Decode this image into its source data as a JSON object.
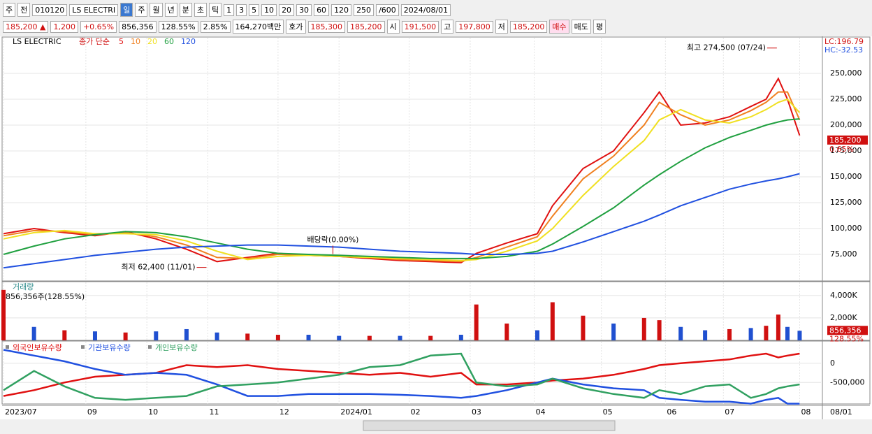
{
  "toolbar": [
    "주",
    "전",
    "010120",
    "LS ELECTRI",
    "일",
    "주",
    "월",
    "년",
    "분",
    "초",
    "틱",
    "1",
    "3",
    "5",
    "10",
    "20",
    "30",
    "60",
    "120",
    "250",
    "/600",
    "2024/08/01"
  ],
  "info": [
    "185,200 ▲",
    "1,200",
    "+0.65%",
    "856,356",
    "128.55%",
    "2.85%",
    "164,270백만",
    "호가",
    "185,300",
    "185,200",
    "시",
    "191,500",
    "고",
    "197,800",
    "저",
    "185,200",
    "매수",
    "매도",
    "평"
  ],
  "chart_data": [
    {
      "type": "line",
      "title": "LS ELECTRIC",
      "legend_label": "종가 단순",
      "lc": "LC:196.79",
      "hc": "HC:-32.53",
      "x": [
        0,
        10,
        20,
        30,
        40,
        50,
        60,
        70,
        80,
        90,
        100,
        110,
        120,
        130,
        140,
        150,
        155,
        165,
        175,
        180,
        190,
        200,
        210,
        215,
        222,
        230,
        238,
        245,
        250,
        254,
        257,
        261
      ],
      "xlim": [
        0,
        268
      ],
      "ylim": [
        49300,
        285800
      ],
      "yticks": [
        {
          "value": 75000,
          "label": "75,000"
        },
        {
          "value": 100000,
          "label": "100,000"
        },
        {
          "value": 125000,
          "label": "125,000"
        },
        {
          "value": 150000,
          "label": "150,000"
        },
        {
          "value": 175000,
          "label": "175,000"
        },
        {
          "value": 200000,
          "label": "200,000"
        },
        {
          "value": 225000,
          "label": "225,000"
        },
        {
          "value": 250000,
          "label": "250,000"
        }
      ],
      "series": [
        {
          "name": "5",
          "color": "#e01010",
          "values": [
            95000,
            100000,
            96000,
            93000,
            97000,
            90000,
            80000,
            68000,
            72000,
            76000,
            74000,
            73000,
            71000,
            69000,
            68000,
            67000,
            76000,
            86000,
            95000,
            122000,
            158000,
            175000,
            212000,
            232000,
            200000,
            202000,
            208000,
            218000,
            225000,
            245000,
            225000,
            190000
          ]
        },
        {
          "name": "10",
          "color": "#f08020",
          "values": [
            93000,
            98000,
            97000,
            94000,
            96000,
            92000,
            84000,
            72000,
            71000,
            75000,
            74000,
            73000,
            72000,
            70000,
            69000,
            68000,
            72000,
            82000,
            92000,
            112000,
            148000,
            170000,
            200000,
            222000,
            210000,
            200000,
            205000,
            214000,
            222000,
            232000,
            232000,
            205000
          ]
        },
        {
          "name": "20",
          "color": "#f0e020",
          "values": [
            90000,
            96000,
            98000,
            95000,
            95000,
            94000,
            88000,
            78000,
            70000,
            73000,
            74000,
            73000,
            72000,
            71000,
            70000,
            69000,
            70000,
            78000,
            88000,
            100000,
            132000,
            160000,
            185000,
            205000,
            215000,
            205000,
            202000,
            208000,
            215000,
            222000,
            225000,
            212000
          ]
        },
        {
          "name": "60",
          "color": "#20a040",
          "values": [
            75000,
            83000,
            90000,
            94000,
            97000,
            96000,
            92000,
            86000,
            80000,
            76000,
            75000,
            74000,
            73000,
            72000,
            71000,
            71000,
            71000,
            73000,
            78000,
            85000,
            102000,
            120000,
            142000,
            152000,
            165000,
            178000,
            188000,
            195000,
            200000,
            203000,
            205000,
            206000
          ]
        },
        {
          "name": "120",
          "color": "#2050e0",
          "values": [
            62000,
            66000,
            70000,
            74000,
            77000,
            80000,
            82000,
            83000,
            84000,
            84000,
            83000,
            82000,
            80000,
            78000,
            77000,
            76000,
            75000,
            75000,
            76000,
            78000,
            87000,
            97000,
            107000,
            113000,
            122000,
            130000,
            138000,
            143000,
            146000,
            148000,
            150000,
            153000
          ]
        }
      ],
      "annotations": [
        {
          "text": "최고 274,500 (07/24)",
          "x": 254,
          "y": 274500,
          "side": "left"
        },
        {
          "text": "최저 62,400 (11/01)",
          "x": 67,
          "y": 62400,
          "side": "left"
        },
        {
          "text": "배당락(0.00%)",
          "x": 108,
          "y": 74000,
          "side": "top"
        }
      ],
      "last": {
        "value": 185200,
        "label": "185,200",
        "change": "0.65%"
      }
    },
    {
      "type": "bar",
      "title": "거래량",
      "summary": "856,356주(128.55%)",
      "x": [
        0,
        10,
        20,
        30,
        40,
        50,
        60,
        70,
        80,
        90,
        100,
        110,
        120,
        130,
        140,
        150,
        155,
        165,
        175,
        180,
        190,
        200,
        210,
        215,
        222,
        230,
        238,
        245,
        250,
        254,
        257,
        261
      ],
      "xlim": [
        0,
        268
      ],
      "ylim": [
        0,
        5300000
      ],
      "yticks": [
        {
          "value": 2000000,
          "label": "2,000K"
        },
        {
          "value": 4000000,
          "label": "4,000K"
        }
      ],
      "values": [
        4500000,
        1200000,
        900000,
        800000,
        700000,
        800000,
        1000000,
        700000,
        600000,
        500000,
        500000,
        400000,
        400000,
        400000,
        400000,
        500000,
        3200000,
        1500000,
        900000,
        3400000,
        2200000,
        1500000,
        2000000,
        1800000,
        1200000,
        900000,
        1000000,
        1100000,
        1300000,
        2300000,
        1200000,
        856356
      ],
      "colors": [
        "#d01010",
        "#2050d0",
        "#d01010",
        "#2050d0",
        "#d01010",
        "#2050d0",
        "#2050d0",
        "#2050d0",
        "#d01010",
        "#d01010",
        "#2050d0",
        "#2050d0",
        "#d01010",
        "#2050d0",
        "#d01010",
        "#2050d0",
        "#d01010",
        "#d01010",
        "#2050d0",
        "#d01010",
        "#d01010",
        "#2050d0",
        "#d01010",
        "#d01010",
        "#2050d0",
        "#2050d0",
        "#d01010",
        "#2050d0",
        "#d01010",
        "#d01010",
        "#2050d0",
        "#2050d0"
      ],
      "last": {
        "value": 856356,
        "label": "856,356",
        "pct": "128.55%"
      }
    },
    {
      "type": "line",
      "x": [
        0,
        10,
        20,
        30,
        40,
        50,
        60,
        70,
        80,
        90,
        100,
        110,
        120,
        130,
        140,
        150,
        155,
        165,
        175,
        180,
        190,
        200,
        210,
        215,
        222,
        230,
        238,
        245,
        250,
        254,
        257,
        261
      ],
      "xlim": [
        0,
        268
      ],
      "ylim": [
        -1058000,
        596000
      ],
      "yticks": [
        0,
        {
          "value": -500000,
          "label": "-500,000"
        }
      ],
      "xticks": [
        {
          "value": 0,
          "label": "2023/07"
        },
        {
          "value": 27,
          "label": "09"
        },
        {
          "value": 47,
          "label": "10"
        },
        {
          "value": 67,
          "label": "11"
        },
        {
          "value": 90,
          "label": "12"
        },
        {
          "value": 110,
          "label": "2024/01"
        },
        {
          "value": 133,
          "label": "02"
        },
        {
          "value": 153,
          "label": "03"
        },
        {
          "value": 174,
          "label": "04"
        },
        {
          "value": 196,
          "label": "05"
        },
        {
          "value": 217,
          "label": "06"
        },
        {
          "value": 236,
          "label": "07"
        },
        {
          "value": 261,
          "label": "08"
        }
      ],
      "x_end_label": "08/01",
      "series": [
        {
          "name": "외국인보유수량",
          "color": "#e01010",
          "values": [
            -850000,
            -700000,
            -500000,
            -350000,
            -300000,
            -250000,
            -50000,
            -100000,
            -50000,
            -150000,
            -200000,
            -250000,
            -300000,
            -250000,
            -350000,
            -250000,
            -550000,
            -550000,
            -500000,
            -450000,
            -400000,
            -300000,
            -150000,
            -50000,
            0,
            50000,
            100000,
            200000,
            250000,
            150000,
            200000,
            250000
          ]
        },
        {
          "name": "기관보유수량",
          "color": "#2050e0",
          "values": [
            350000,
            200000,
            50000,
            -150000,
            -300000,
            -250000,
            -300000,
            -550000,
            -850000,
            -850000,
            -800000,
            -800000,
            -800000,
            -820000,
            -850000,
            -900000,
            -850000,
            -700000,
            -500000,
            -400000,
            -550000,
            -650000,
            -700000,
            -900000,
            -950000,
            -1000000,
            -1000000,
            -1050000,
            -950000,
            -900000,
            -1050000,
            -1050000
          ]
        },
        {
          "name": "개인보유수량",
          "color": "#30a060",
          "values": [
            -700000,
            -200000,
            -600000,
            -900000,
            -950000,
            -900000,
            -850000,
            -600000,
            -550000,
            -500000,
            -400000,
            -300000,
            -100000,
            -50000,
            200000,
            250000,
            -500000,
            -600000,
            -550000,
            -400000,
            -650000,
            -800000,
            -900000,
            -700000,
            -800000,
            -600000,
            -550000,
            -900000,
            -800000,
            -650000,
            -600000,
            -550000
          ]
        }
      ]
    }
  ]
}
